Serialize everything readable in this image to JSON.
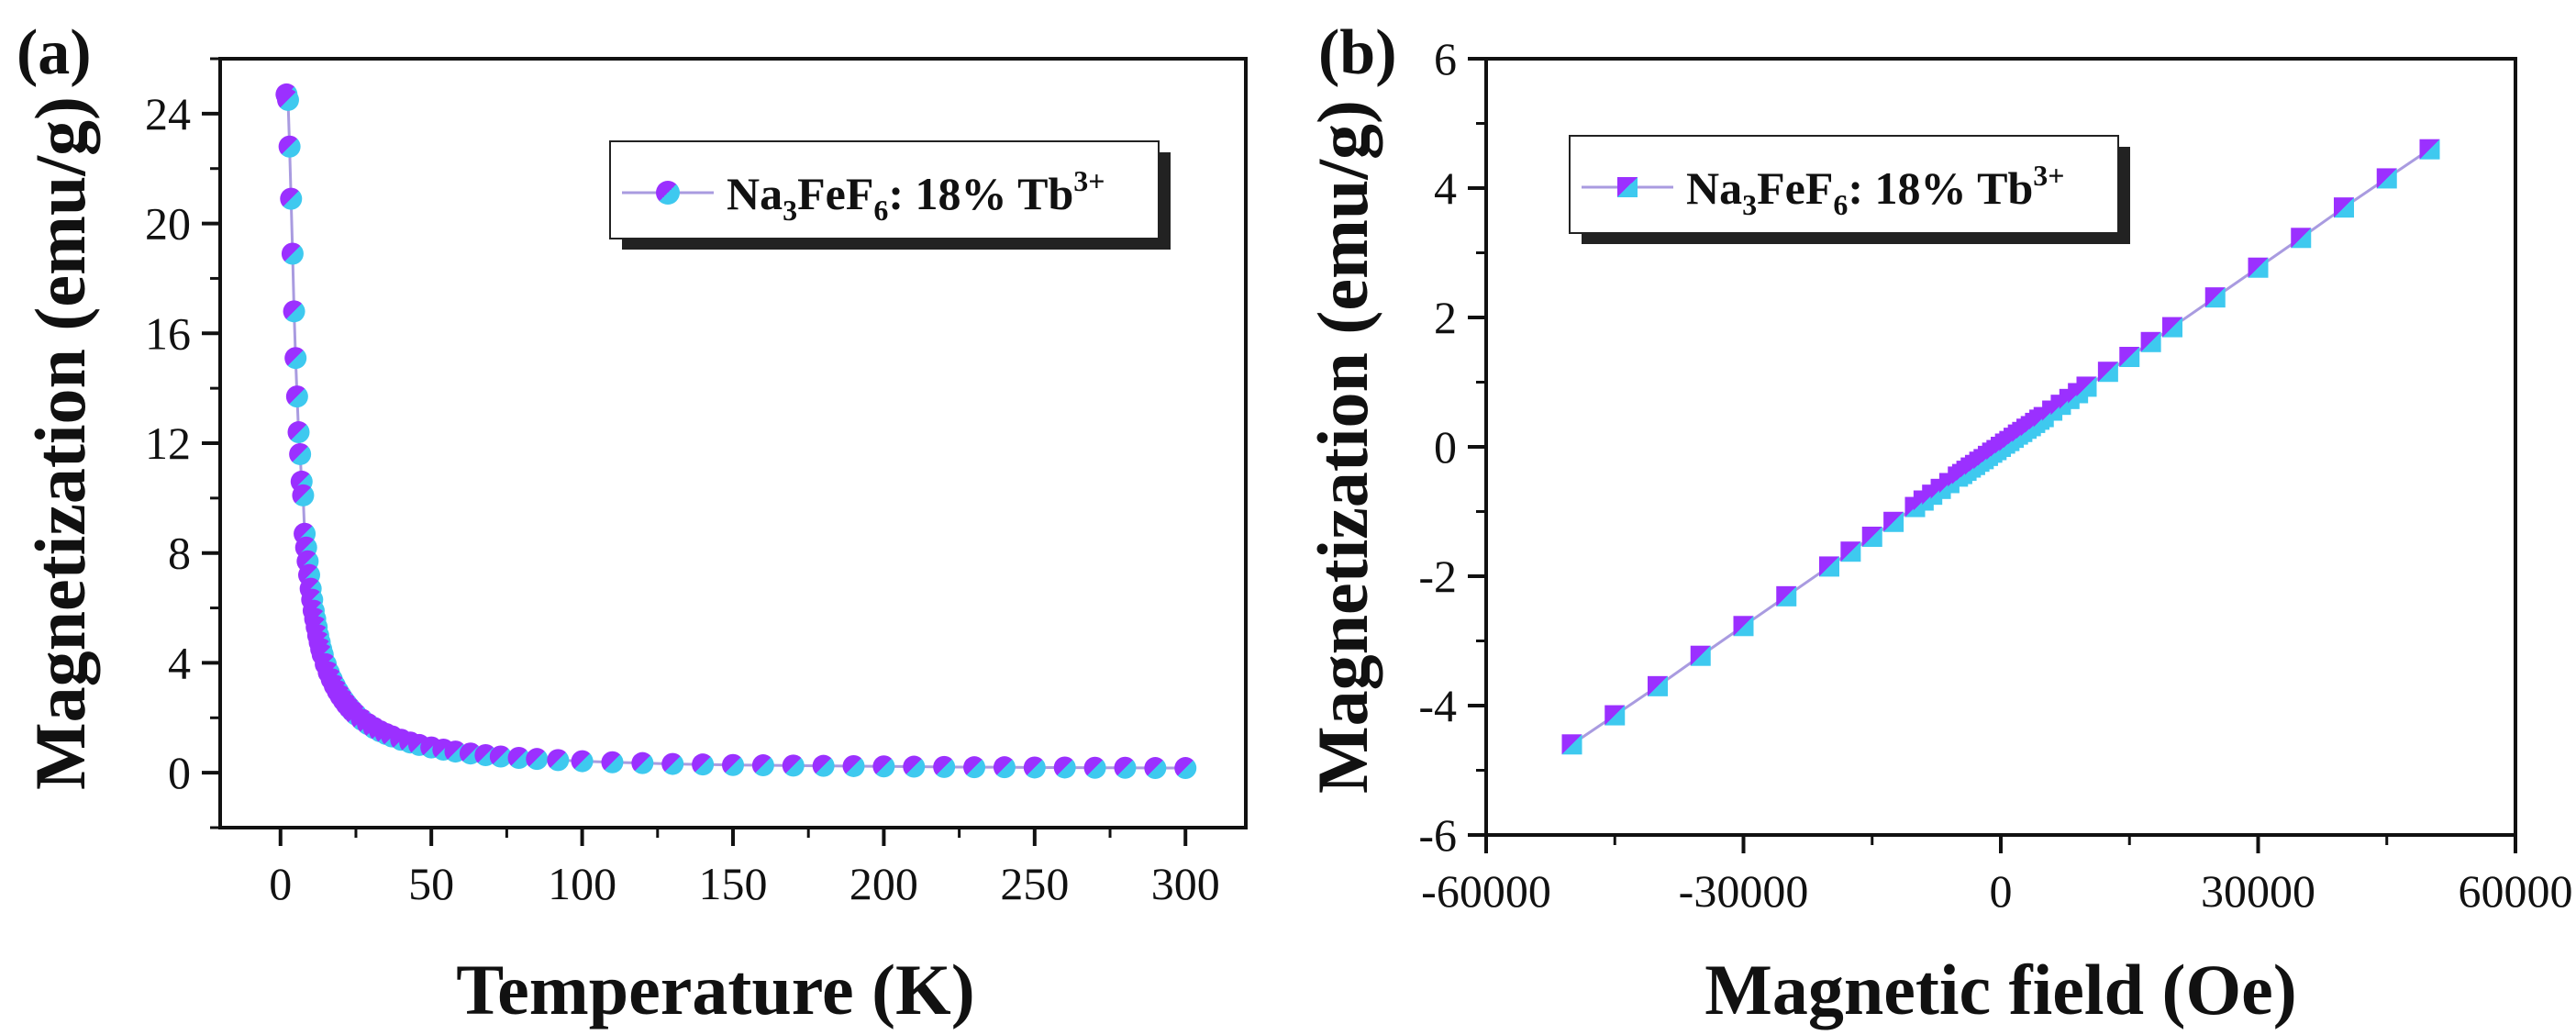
{
  "chart_data": [
    {
      "type": "scatter",
      "panel_label": "(a)",
      "xlabel": "Temperature (K)",
      "ylabel": "Magnetization (emu/g)",
      "xlim": [
        -20,
        320
      ],
      "ylim": [
        -2,
        26
      ],
      "xticks": [
        0,
        50,
        100,
        150,
        200,
        250,
        300
      ],
      "yticks": [
        0,
        4,
        8,
        12,
        16,
        20,
        24
      ],
      "xtick_labels": [
        "0",
        "50",
        "100",
        "150",
        "200",
        "250",
        "300"
      ],
      "ytick_labels": [
        "0",
        "4",
        "8",
        "12",
        "16",
        "20",
        "24"
      ],
      "legend": {
        "position": "top-right",
        "formula_parts": [
          "Na",
          "3",
          "FeF",
          "6",
          ": 18% Tb",
          "3+"
        ]
      },
      "series": [
        {
          "name": "Na3FeF6: 18% Tb3+",
          "marker": "circle",
          "x": [
            2,
            2.5,
            3,
            3.5,
            4,
            4.5,
            5,
            5.5,
            6,
            6.5,
            7,
            7.5,
            8,
            8.5,
            9,
            9.5,
            10,
            10.5,
            11,
            11.5,
            12,
            12.5,
            13,
            13.5,
            14,
            15,
            16,
            17,
            18,
            19,
            20,
            21,
            22,
            23,
            24,
            25,
            27,
            29,
            31,
            33,
            35,
            37,
            40,
            43,
            46,
            50,
            54,
            58,
            63,
            68,
            73,
            79,
            85,
            92,
            100,
            110,
            120,
            130,
            140,
            150,
            160,
            170,
            180,
            190,
            200,
            210,
            220,
            230,
            240,
            250,
            260,
            270,
            280,
            290,
            300
          ],
          "values": [
            24.7,
            24.5,
            22.8,
            20.9,
            18.9,
            16.8,
            15.1,
            13.7,
            12.4,
            11.6,
            10.6,
            10.1,
            8.7,
            8.2,
            7.7,
            7.2,
            6.7,
            6.3,
            5.9,
            5.6,
            5.3,
            5.0,
            4.75,
            4.5,
            4.3,
            3.95,
            3.65,
            3.4,
            3.17,
            2.97,
            2.79,
            2.63,
            2.48,
            2.35,
            2.23,
            2.12,
            1.93,
            1.77,
            1.63,
            1.51,
            1.41,
            1.32,
            1.2,
            1.1,
            1.01,
            0.92,
            0.84,
            0.77,
            0.7,
            0.64,
            0.59,
            0.54,
            0.5,
            0.46,
            0.42,
            0.38,
            0.35,
            0.32,
            0.3,
            0.28,
            0.27,
            0.26,
            0.25,
            0.24,
            0.23,
            0.22,
            0.21,
            0.2,
            0.2,
            0.19,
            0.19,
            0.18,
            0.18,
            0.17,
            0.17
          ]
        }
      ]
    },
    {
      "type": "scatter",
      "panel_label": "(b)",
      "xlabel": "Magnetic field (Oe)",
      "ylabel": "Magnetization (emu/g)",
      "xlim": [
        -60000,
        60000
      ],
      "ylim": [
        -6,
        6
      ],
      "xticks": [
        -60000,
        -30000,
        0,
        30000,
        60000
      ],
      "yticks": [
        -6,
        -4,
        -2,
        0,
        2,
        4,
        6
      ],
      "xtick_labels": [
        "-60000",
        "-30000",
        "0",
        "30000",
        "60000"
      ],
      "ytick_labels": [
        "-6",
        "-4",
        "-2",
        "0",
        "2",
        "4",
        "6"
      ],
      "legend": {
        "position": "top-left",
        "formula_parts": [
          "Na",
          "3",
          "FeF",
          "6",
          ": 18% Tb",
          "3+"
        ]
      },
      "series": [
        {
          "name": "Na3FeF6: 18% Tb3+",
          "marker": "square",
          "x": [
            -50000,
            -45000,
            -40000,
            -35000,
            -30000,
            -25000,
            -20000,
            -17500,
            -15000,
            -12500,
            -10000,
            -9000,
            -8000,
            -7000,
            -6000,
            -5000,
            -4500,
            -4000,
            -3500,
            -3000,
            -2500,
            -2000,
            -1500,
            -1000,
            -500,
            0,
            500,
            1000,
            1500,
            2000,
            2500,
            3000,
            3500,
            4000,
            4500,
            5000,
            6000,
            7000,
            8000,
            9000,
            10000,
            12500,
            15000,
            17500,
            20000,
            25000,
            30000,
            35000,
            40000,
            45000,
            50000
          ],
          "values": [
            -4.6,
            -4.15,
            -3.7,
            -3.23,
            -2.77,
            -2.31,
            -1.85,
            -1.62,
            -1.39,
            -1.16,
            -0.93,
            -0.83,
            -0.74,
            -0.65,
            -0.56,
            -0.46,
            -0.42,
            -0.37,
            -0.32,
            -0.28,
            -0.23,
            -0.19,
            -0.14,
            -0.09,
            -0.05,
            0,
            0.05,
            0.09,
            0.14,
            0.19,
            0.23,
            0.28,
            0.32,
            0.37,
            0.42,
            0.46,
            0.56,
            0.65,
            0.74,
            0.83,
            0.93,
            1.16,
            1.39,
            1.62,
            1.85,
            2.31,
            2.77,
            3.23,
            3.7,
            4.15,
            4.6
          ]
        }
      ]
    }
  ]
}
